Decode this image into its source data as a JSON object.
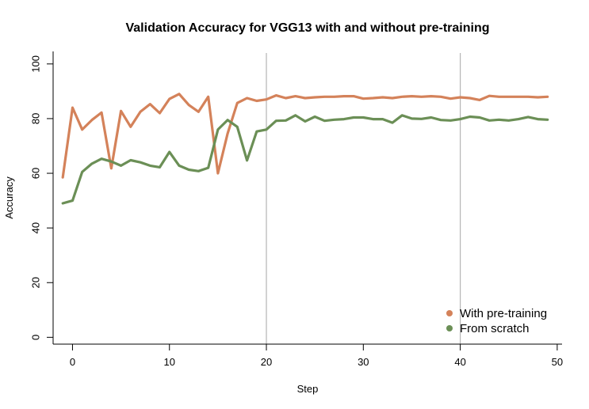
{
  "chart_data": {
    "type": "line",
    "title": "Validation Accuracy for VGG13 with and without pre-training",
    "xlabel": "Step",
    "ylabel": "Accuracy",
    "xlim": [
      -2,
      50.5
    ],
    "ylim": [
      -2.5,
      104
    ],
    "xticks": [
      0,
      10,
      20,
      30,
      40,
      50
    ],
    "yticks": [
      0,
      20,
      40,
      60,
      80,
      100
    ],
    "vertical_reference_lines": [
      20,
      40
    ],
    "legend_position": "bottom-right",
    "grid": false,
    "x": [
      -1,
      0,
      1,
      2,
      3,
      4,
      5,
      6,
      7,
      8,
      9,
      10,
      11,
      12,
      13,
      14,
      15,
      16,
      17,
      18,
      19,
      20,
      21,
      22,
      23,
      24,
      25,
      26,
      27,
      28,
      29,
      30,
      31,
      32,
      33,
      34,
      35,
      36,
      37,
      38,
      39,
      40,
      41,
      42,
      43,
      44,
      45,
      46,
      47,
      48,
      49
    ],
    "series": [
      {
        "name": "With pre-training",
        "color": "#d4825a",
        "values": [
          58.5,
          84.0,
          76.0,
          79.5,
          82.2,
          61.8,
          82.8,
          77.0,
          82.5,
          85.3,
          82.0,
          87.2,
          89.0,
          85.0,
          82.5,
          88.0,
          60.0,
          74.5,
          85.7,
          87.5,
          86.5,
          87.0,
          88.5,
          87.5,
          88.2,
          87.5,
          87.8,
          88.0,
          88.0,
          88.2,
          88.2,
          87.3,
          87.5,
          87.8,
          87.5,
          88.0,
          88.2,
          88.0,
          88.2,
          88.0,
          87.3,
          87.8,
          87.5,
          86.8,
          88.3,
          88.0,
          88.0,
          88.0,
          88.0,
          87.8,
          88.0
        ]
      },
      {
        "name": "From scratch",
        "color": "#6b8f56",
        "values": [
          49.0,
          50.0,
          60.5,
          63.5,
          65.3,
          64.3,
          62.8,
          64.8,
          64.0,
          62.8,
          62.2,
          67.8,
          62.8,
          61.3,
          60.8,
          62.0,
          76.0,
          79.5,
          77.0,
          64.7,
          75.3,
          76.0,
          79.2,
          79.3,
          81.2,
          79.0,
          80.7,
          79.2,
          79.6,
          79.8,
          80.4,
          80.4,
          79.8,
          79.8,
          78.5,
          81.2,
          80.0,
          79.9,
          80.4,
          79.5,
          79.3,
          79.8,
          80.7,
          80.4,
          79.3,
          79.6,
          79.3,
          79.8,
          80.6,
          79.8,
          79.6
        ]
      }
    ]
  }
}
